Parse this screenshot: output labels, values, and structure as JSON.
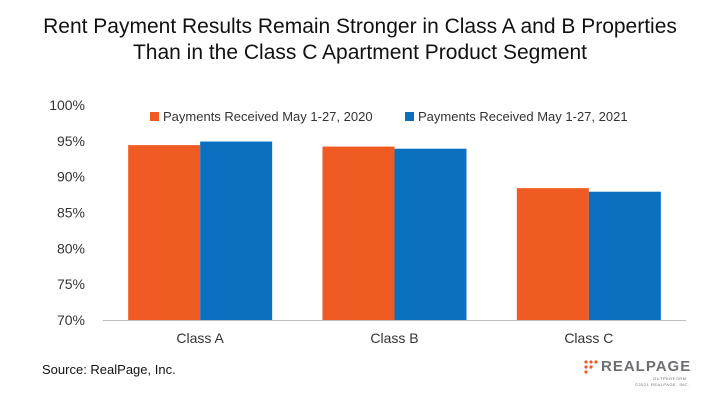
{
  "chart_data": {
    "type": "bar",
    "title_lines": [
      "Rent Payment Results Remain Stronger in Class A and B Properties",
      "Than in the Class C Apartment Product Segment"
    ],
    "categories": [
      "Class A",
      "Class B",
      "Class C"
    ],
    "series": [
      {
        "name": "Payments Received May 1-27, 2020",
        "color": "#ef5b22",
        "values": [
          94.4,
          94.2,
          88.4
        ]
      },
      {
        "name": "Payments Received May 1-27, 2021",
        "color": "#0b6fc0",
        "values": [
          94.9,
          93.9,
          87.9
        ]
      }
    ],
    "ylim": [
      70,
      100
    ],
    "yticks": [
      70,
      75,
      80,
      85,
      90,
      95,
      100
    ],
    "ytick_labels": [
      "70%",
      "75%",
      "80%",
      "85%",
      "90%",
      "95%",
      "100%"
    ],
    "legend_position": "top",
    "grid": false
  },
  "source": "Source: RealPage, Inc.",
  "logo": {
    "word": "REALPAGE",
    "tagline": "OUTPERFORM",
    "copyright": "©2021 REALPAGE, INC.",
    "accent": "#ef5b22"
  }
}
